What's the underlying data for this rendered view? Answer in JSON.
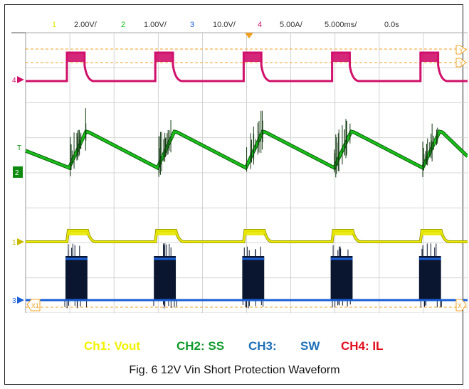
{
  "header": {
    "ch1_num": "1",
    "ch1_scale": "2.00V/",
    "ch2_num": "2",
    "ch2_scale": "1.00V/",
    "ch3_num": "3",
    "ch3_scale": "10.0V/",
    "ch4_num": "4",
    "ch4_scale": "5.00A/",
    "timebase": "5.000ms/",
    "delay": "0.0s"
  },
  "markers": {
    "ch4": "4",
    "ch2": "2",
    "ch1": "1",
    "ch3": "3",
    "trigger": "T",
    "x1": "X1",
    "x2": "X",
    "y1": "Y",
    "y2": "Y"
  },
  "legend": {
    "ch1": "Ch1: Vout",
    "ch2": "CH2: SS",
    "ch3": "CH3:",
    "sw": "SW",
    "ch4": "CH4: IL"
  },
  "caption": "Fig. 6    12V Vin Short Protection Waveform",
  "colors": {
    "ch1": "#e8e800",
    "ch2": "#19c219",
    "ch3": "#1a5fd6",
    "ch4": "#d0106a",
    "legend_ch1": "#f2f200",
    "legend_ch2": "#0e9a2a",
    "legend_ch3": "#1d6fb8",
    "legend_ch4": "#e0101e",
    "cursor": "#f0a020",
    "grid": "#c8c8c8",
    "burst": "#0a1630"
  },
  "chart_data": {
    "type": "line",
    "grid_divisions": {
      "x": 10,
      "y": 8
    },
    "time_per_div_ms": 5,
    "hiccup_period_ms": 10,
    "pulse_width_ms": 2,
    "series": [
      {
        "name": "Vout",
        "channel": 1,
        "scale": "2.00V/"
      },
      {
        "name": "SS",
        "channel": 2,
        "scale": "1.00V/"
      },
      {
        "name": "SW",
        "channel": 3,
        "scale": "10.0V/"
      },
      {
        "name": "IL",
        "channel": 4,
        "scale": "5.00A/"
      }
    ]
  }
}
